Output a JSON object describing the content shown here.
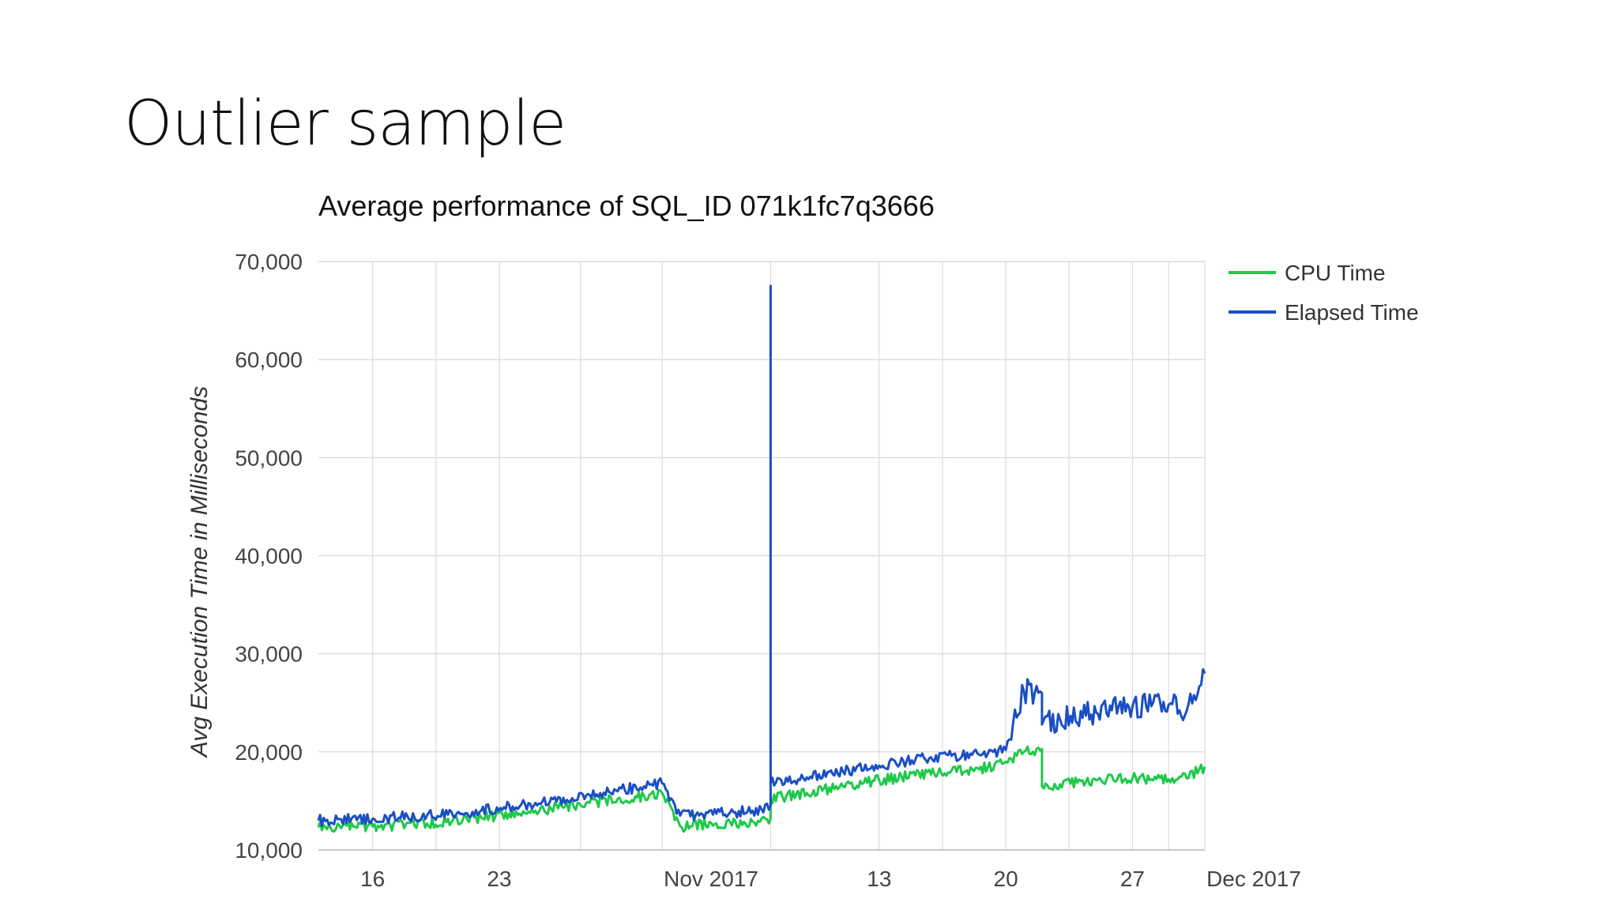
{
  "slide": {
    "title": "Outlier sample"
  },
  "chart_data": {
    "type": "line",
    "title": "Average performance of SQL_ID 071k1fc7q3666",
    "xlabel": "",
    "ylabel": "Avg Execution Time in Milliseconds",
    "xlim": [
      "2017-10-13",
      "2017-12-01"
    ],
    "ylim": [
      10000,
      70000
    ],
    "y_ticks": [
      10000,
      20000,
      30000,
      40000,
      50000,
      60000,
      70000
    ],
    "y_tick_labels": [
      "10,000",
      "20,000",
      "30,000",
      "40,000",
      "50,000",
      "60,000",
      "70,000"
    ],
    "x_ticks": [
      {
        "date": "2017-10-16",
        "label": "16"
      },
      {
        "date": "2017-10-23",
        "label": "23"
      },
      {
        "date": "2017-11-01",
        "label": "Nov 2017"
      },
      {
        "date": "2017-11-13",
        "label": "13"
      },
      {
        "date": "2017-11-20",
        "label": "20"
      },
      {
        "date": "2017-11-27",
        "label": "27"
      },
      {
        "date": "2017-12-01",
        "label": "Dec 2017"
      }
    ],
    "grid": true,
    "legend_position": "right",
    "series": [
      {
        "name": "CPU Time",
        "color": "#1ec94a",
        "x": [
          "2017-10-13",
          "2017-10-16",
          "2017-10-19",
          "2017-10-22",
          "2017-10-25",
          "2017-10-28",
          "2017-10-31",
          "2017-11-01",
          "2017-11-02",
          "2017-11-04",
          "2017-11-06",
          "2017-11-07",
          "2017-11-07",
          "2017-11-09",
          "2017-11-11",
          "2017-11-13",
          "2017-11-15",
          "2017-11-17",
          "2017-11-19",
          "2017-11-20",
          "2017-11-21",
          "2017-11-22",
          "2017-11-22",
          "2017-11-23",
          "2017-11-25",
          "2017-11-27",
          "2017-11-29",
          "2017-11-30",
          "2017-12-01"
        ],
        "values": [
          12300,
          12400,
          12700,
          13300,
          14000,
          14800,
          15500,
          15800,
          12400,
          12700,
          12900,
          13200,
          15200,
          15800,
          16500,
          17100,
          17600,
          18100,
          18400,
          19000,
          20000,
          20300,
          16500,
          16700,
          17100,
          17300,
          17200,
          17300,
          18500
        ]
      },
      {
        "name": "Elapsed Time",
        "color": "#1a4fc4",
        "x": [
          "2017-10-13",
          "2017-10-16",
          "2017-10-19",
          "2017-10-22",
          "2017-10-25",
          "2017-10-28",
          "2017-10-31",
          "2017-11-01",
          "2017-11-02",
          "2017-11-04",
          "2017-11-06",
          "2017-11-07",
          "2017-11-07",
          "2017-11-07",
          "2017-11-07",
          "2017-11-09",
          "2017-11-11",
          "2017-11-13",
          "2017-11-15",
          "2017-11-17",
          "2017-11-19",
          "2017-11-20",
          "2017-11-21",
          "2017-11-22",
          "2017-11-22",
          "2017-11-23",
          "2017-11-25",
          "2017-11-27",
          "2017-11-29",
          "2017-11-30",
          "2017-12-01"
        ],
        "values": [
          13000,
          13200,
          13500,
          14000,
          14800,
          15600,
          16500,
          16800,
          13500,
          13700,
          14000,
          14500,
          67500,
          14500,
          16800,
          17400,
          18000,
          18600,
          19200,
          19600,
          19800,
          20200,
          26200,
          26000,
          22800,
          23300,
          24000,
          24600,
          24800,
          24200,
          28000
        ]
      }
    ]
  }
}
